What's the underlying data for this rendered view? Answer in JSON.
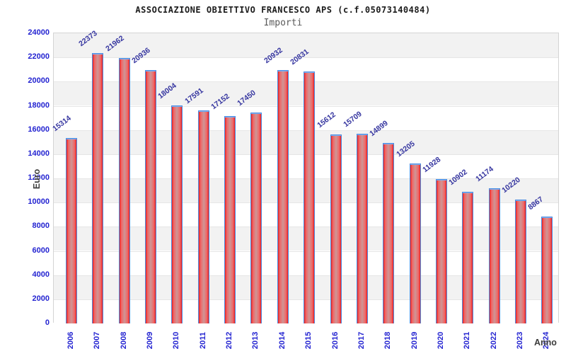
{
  "chart_data": {
    "type": "bar",
    "title": "ASSOCIAZIONE OBIETTIVO FRANCESCO APS (c.f.05073140484)",
    "subtitle": "Importi",
    "xlabel": "Anno",
    "ylabel": "Euro",
    "categories": [
      "2006",
      "2007",
      "2008",
      "2009",
      "2010",
      "2011",
      "2012",
      "2013",
      "2014",
      "2015",
      "2016",
      "2017",
      "2018",
      "2019",
      "2020",
      "2021",
      "2022",
      "2023",
      "2024"
    ],
    "values": [
      15314,
      22373,
      21962,
      20936,
      18004,
      17591,
      17152,
      17450,
      20932,
      20831,
      15612,
      15709,
      14899,
      13205,
      11928,
      10902,
      11174,
      10220,
      8867
    ],
    "ylim": [
      0,
      24000
    ],
    "yticks": [
      0,
      2000,
      4000,
      6000,
      8000,
      10000,
      12000,
      14000,
      16000,
      18000,
      20000,
      22000,
      24000
    ],
    "value_labels_shown": true,
    "legend": "none",
    "grid": "horizontal-bands",
    "colors": {
      "bar_edge": "#4d8ce0",
      "bar_fill_dark": "#e82020",
      "bar_fill_light": "#cf9595",
      "tick_label": "#2424d1",
      "value_label": "#3636a0",
      "band_gray": "#f2f2f2",
      "band_white": "#ffffff",
      "grid_line": "#e6e6e6",
      "plot_border": "#d4d4d4",
      "axis_title": "#3c3c3c",
      "title": "#1b1b1b",
      "subtitle": "#5a5a5a"
    }
  }
}
